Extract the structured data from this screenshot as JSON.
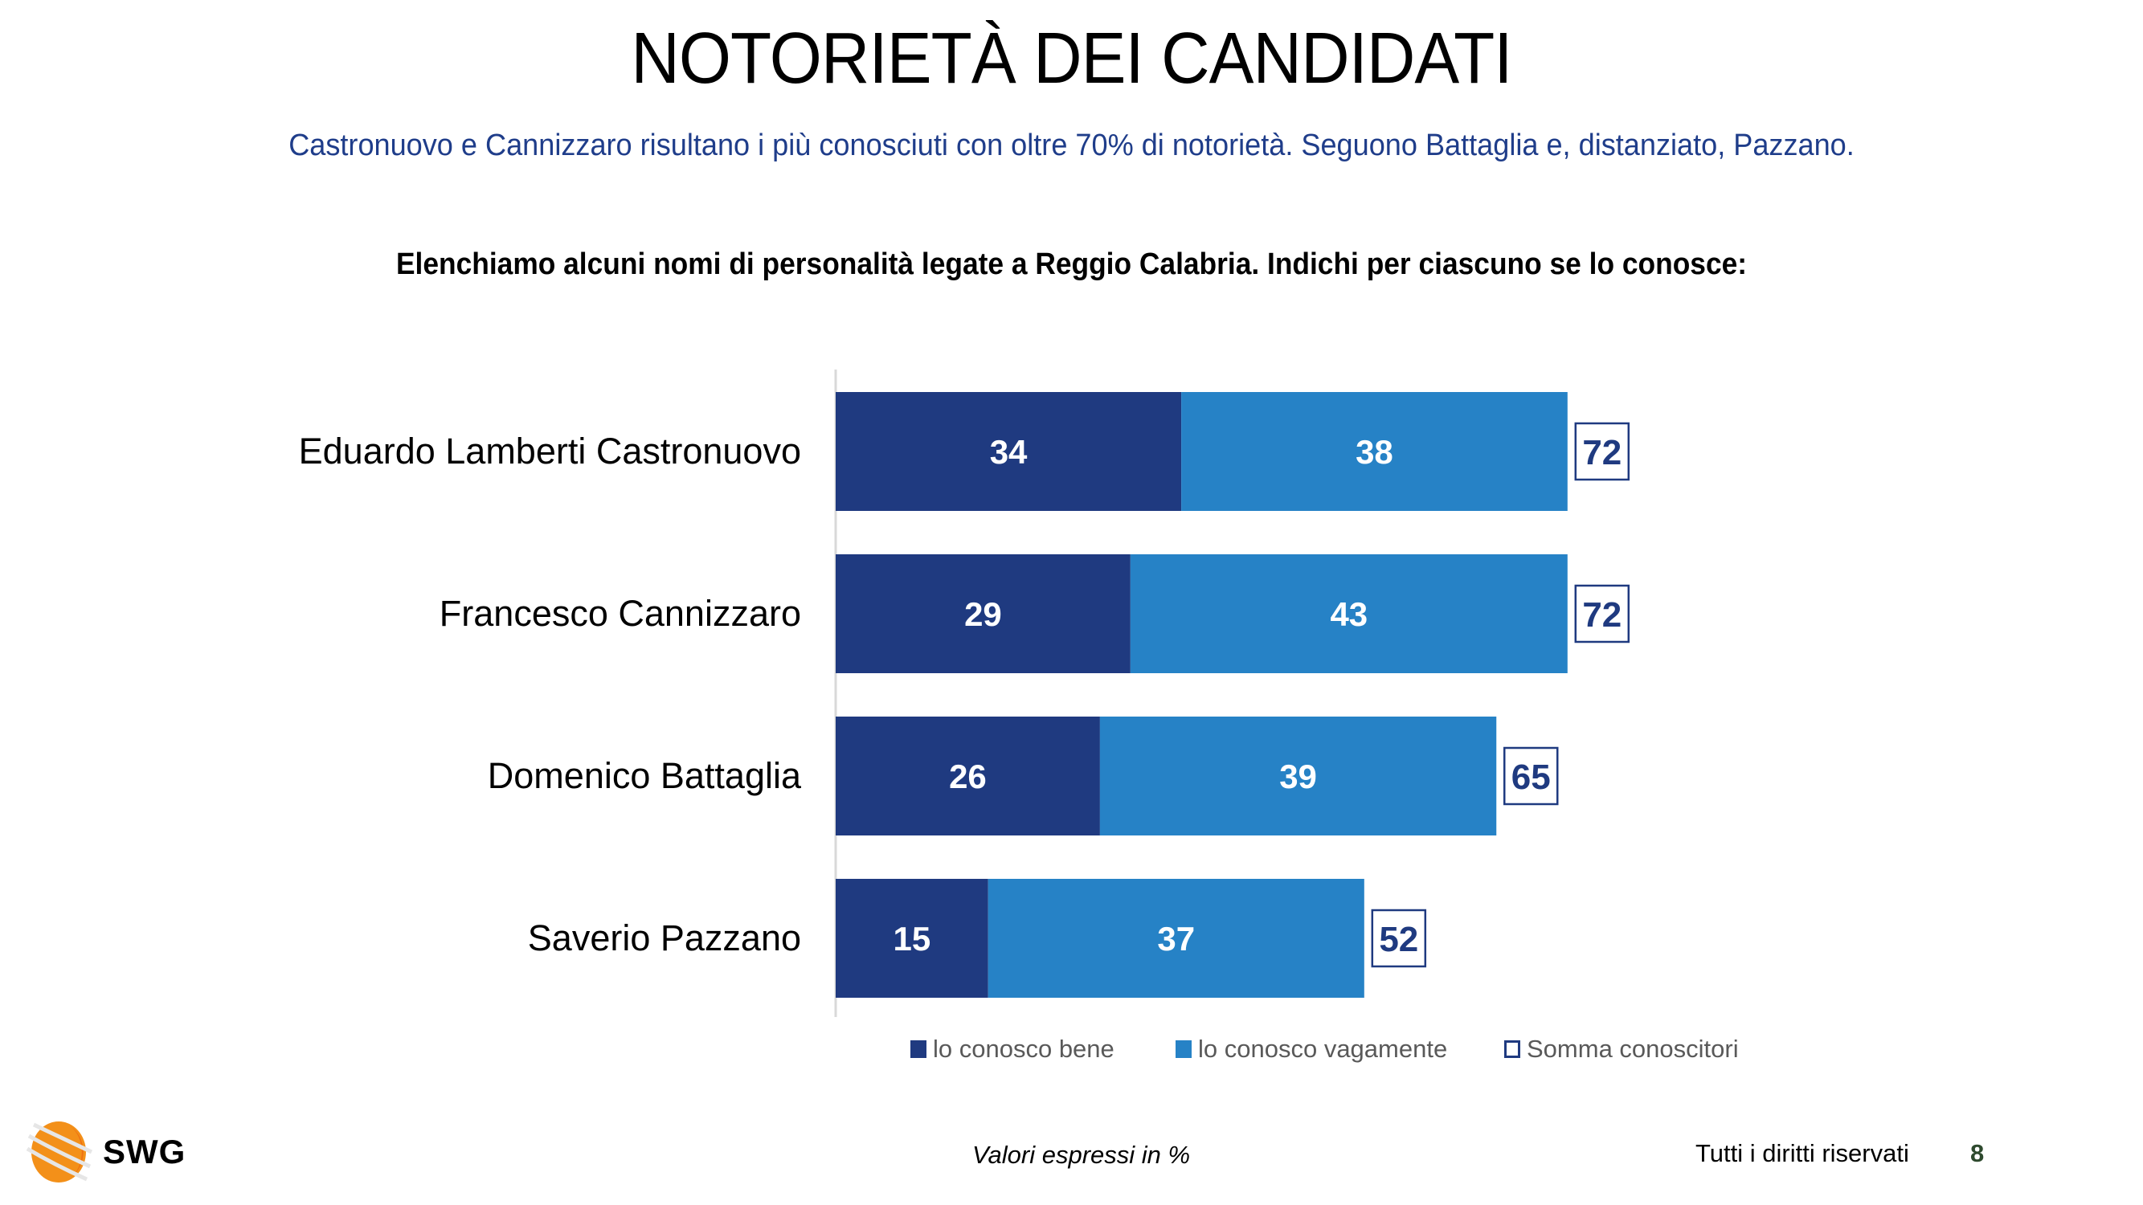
{
  "header": {
    "title": "NOTORIETÀ DEI CANDIDATI",
    "subtitle": "Castronuovo e Cannizzaro risultano i più conosciuti con oltre 70% di notorietà. Seguono Battaglia e, distanziato, Pazzano.",
    "question": "Elenchiamo alcuni nomi di personalità legate a Reggio Calabria. Indichi per ciascuno se lo conosce:"
  },
  "colors": {
    "dark_blue": "#1f3a80",
    "light_blue": "#2682c6",
    "subtitle": "#1f3d8a",
    "legend_text": "#595959",
    "axis": "#d9d9d9",
    "page_number": "#2e4a2e",
    "logo_orange": "#f39019"
  },
  "chart_data": {
    "type": "bar",
    "orientation": "horizontal",
    "stacked": true,
    "title": "NOTORIETÀ DEI CANDIDATI",
    "categories": [
      "Eduardo Lamberti Castronuovo",
      "Francesco Cannizzaro",
      "Domenico Battaglia",
      "Saverio Pazzano"
    ],
    "series": [
      {
        "name": "lo conosco bene",
        "values": [
          34,
          29,
          26,
          15
        ]
      },
      {
        "name": "lo conosco vagamente",
        "values": [
          38,
          43,
          39,
          37
        ]
      }
    ],
    "totals": {
      "name": "Somma conoscitori",
      "values": [
        72,
        72,
        65,
        52
      ]
    },
    "xlabel": "",
    "ylabel": "",
    "xlim": [
      0,
      100
    ],
    "grid": false,
    "legend_position": "bottom",
    "units": "%"
  },
  "legend": {
    "items": [
      {
        "label": "lo conosco bene",
        "style": "dark"
      },
      {
        "label": "lo conosco vagamente",
        "style": "light"
      },
      {
        "label": "Somma conoscitori",
        "style": "outline"
      }
    ]
  },
  "footer": {
    "note": "Valori espressi in %",
    "rights": "Tutti i diritti riservati",
    "page_number": "8",
    "logo_text": "SWG"
  }
}
